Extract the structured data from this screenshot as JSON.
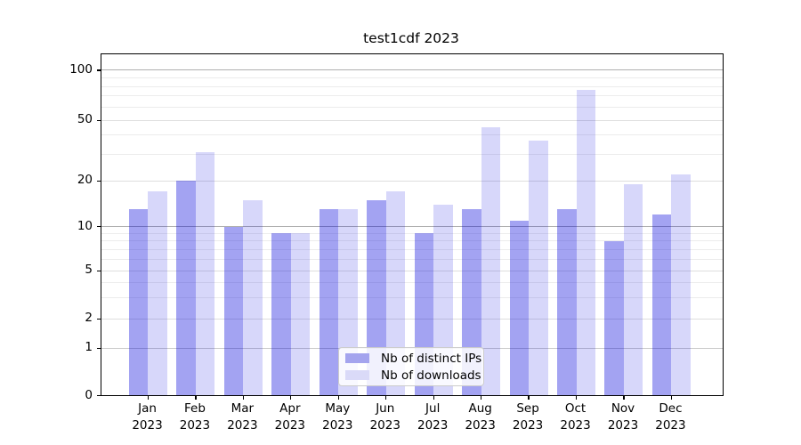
{
  "chart_data": {
    "type": "bar",
    "title": "test1cdf 2023",
    "categories": [
      "Jan 2023",
      "Feb 2023",
      "Mar 2023",
      "Apr 2023",
      "May 2023",
      "Jun 2023",
      "Jul 2023",
      "Aug 2023",
      "Sep 2023",
      "Oct 2023",
      "Nov 2023",
      "Dec 2023"
    ],
    "series": [
      {
        "name": "Nb of distinct IPs",
        "legend_color": "#a4a4ee",
        "fill": "rgba(0,0,220,0.36)",
        "values": [
          13,
          20,
          10,
          9,
          13,
          15,
          9,
          13,
          11,
          13,
          8,
          12
        ]
      },
      {
        "name": "Nb of downloads",
        "legend_color": "#dadaf8",
        "fill": "rgba(0,0,220,0.155)",
        "values": [
          17,
          31,
          15,
          9,
          13,
          17,
          14,
          45,
          37,
          76,
          19,
          22
        ]
      }
    ],
    "yscale": "symlog",
    "yticks": [
      0,
      1,
      2,
      5,
      10,
      20,
      50,
      100
    ],
    "ytick_labels": [
      "0",
      "1",
      "2",
      "5",
      "10",
      "20",
      "50",
      "100"
    ],
    "minor_gridlines": [
      3,
      4,
      6,
      7,
      8,
      9,
      30,
      40,
      60,
      70,
      80,
      90
    ],
    "ylim": [
      0,
      130
    ],
    "grid": true,
    "legend_position": "lower center",
    "axis_color": "#000000",
    "major_gridline_color": "#b0b0b0",
    "minor_gridline_color": "#ececec"
  }
}
